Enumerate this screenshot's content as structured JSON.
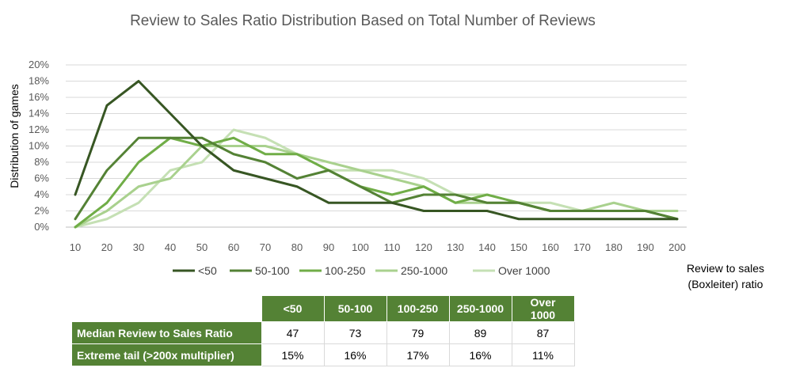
{
  "chart_data": {
    "type": "line",
    "title": "Review to Sales Ratio Distribution Based on Total Number of Reviews",
    "xlabel_lines": [
      "Review to sales",
      "(Boxleiter) ratio"
    ],
    "ylabel": "Distribution of games",
    "x": [
      10,
      20,
      30,
      40,
      50,
      60,
      70,
      80,
      90,
      100,
      110,
      120,
      130,
      140,
      150,
      160,
      170,
      180,
      190,
      200
    ],
    "yticks": [
      "0%",
      "2%",
      "4%",
      "6%",
      "8%",
      "10%",
      "12%",
      "14%",
      "16%",
      "18%",
      "20%"
    ],
    "ylim": [
      0,
      20
    ],
    "legend_position": "bottom",
    "series": [
      {
        "name": "<50",
        "color": "#375623",
        "values": [
          4,
          15,
          18,
          14,
          10,
          7,
          6,
          5,
          3,
          3,
          3,
          2,
          2,
          2,
          1,
          1,
          1,
          1,
          1,
          1
        ]
      },
      {
        "name": "50-100",
        "color": "#548235",
        "values": [
          1,
          7,
          11,
          11,
          11,
          9,
          8,
          6,
          7,
          5,
          3,
          4,
          4,
          3,
          3,
          2,
          2,
          2,
          2,
          1
        ]
      },
      {
        "name": "100-250",
        "color": "#70ad47",
        "values": [
          0,
          3,
          8,
          11,
          10,
          11,
          9,
          9,
          7,
          5,
          4,
          5,
          3,
          4,
          3,
          2,
          2,
          2,
          2,
          1
        ]
      },
      {
        "name": "250-1000",
        "color": "#a9d18e",
        "values": [
          0,
          2,
          5,
          6,
          10,
          10,
          10,
          9,
          8,
          7,
          6,
          5,
          3,
          3,
          3,
          2,
          2,
          3,
          2,
          2
        ]
      },
      {
        "name": "Over 1000",
        "color": "#c5e0b4",
        "values": [
          0,
          1,
          3,
          7,
          8,
          12,
          11,
          9,
          7,
          7,
          7,
          6,
          4,
          4,
          3,
          3,
          2,
          2,
          2,
          2
        ]
      }
    ]
  },
  "table": {
    "headers": [
      "<50",
      "50-100",
      "100-250",
      "250-1000",
      "Over 1000"
    ],
    "rows": [
      {
        "label": "Median Review to Sales Ratio",
        "values": [
          "47",
          "73",
          "79",
          "89",
          "87"
        ]
      },
      {
        "label": "Extreme tail (>200x multiplier)",
        "values": [
          "15%",
          "16%",
          "17%",
          "16%",
          "11%"
        ]
      }
    ]
  }
}
